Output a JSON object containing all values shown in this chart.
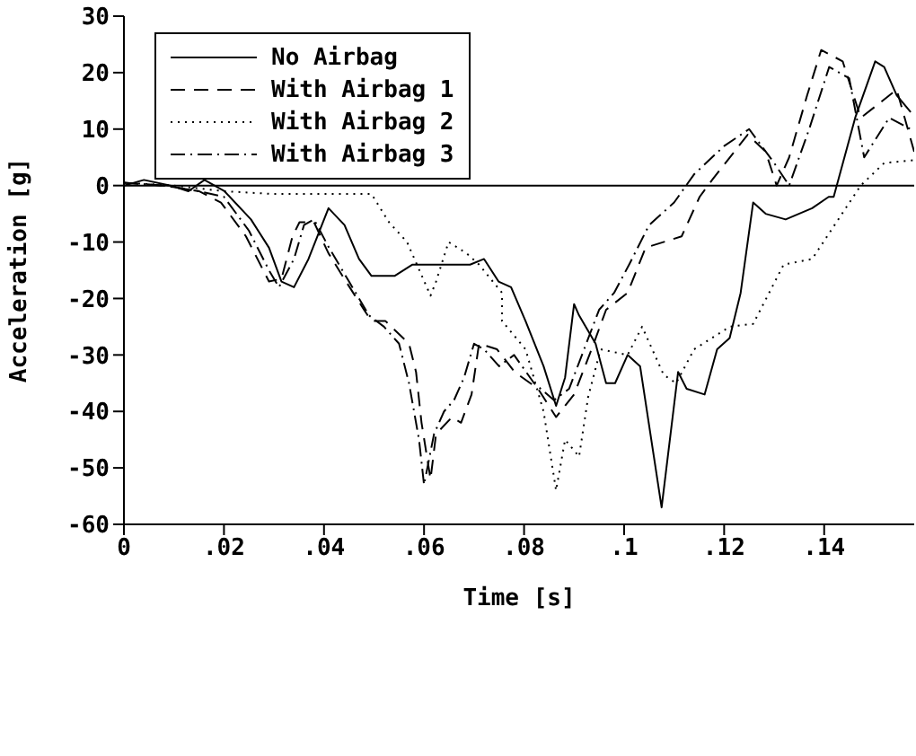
{
  "chart_data": {
    "type": "line",
    "xlabel": "Time [s]",
    "ylabel": "Acceleration [g]",
    "xlim": [
      0,
      0.158
    ],
    "xticks": [
      0,
      {
        "value": 0.02,
        "label": ".02"
      },
      {
        "value": 0.04,
        "label": ".04"
      },
      {
        "value": 0.06,
        "label": ".06"
      },
      {
        "value": 0.08,
        "label": ".08"
      },
      {
        "value": 0.1,
        "label": ".1"
      },
      {
        "value": 0.12,
        "label": ".12"
      },
      {
        "value": 0.14,
        "label": ".14"
      }
    ],
    "ylim": [
      -60,
      30
    ],
    "yticks": [
      -60,
      -50,
      -40,
      -30,
      -20,
      -10,
      0,
      10,
      20,
      30
    ],
    "grid": false,
    "legend": "top left",
    "marker": "none",
    "ref_lines": [
      {
        "axis": "y",
        "value": 0,
        "color": "#000000",
        "line_style": "solid"
      }
    ],
    "series": [
      {
        "name": "No Airbag",
        "color": "#000000",
        "line_style": "solid",
        "x": [
          0,
          0.004,
          0.0093,
          0.0129,
          0.0161,
          0.0201,
          0.0254,
          0.029,
          0.0315,
          0.034,
          0.0369,
          0.0409,
          0.0441,
          0.047,
          0.0495,
          0.0541,
          0.0577,
          0.0631,
          0.0692,
          0.072,
          0.0749,
          0.0774,
          0.0803,
          0.0839,
          0.0864,
          0.0882,
          0.09,
          0.091,
          0.0943,
          0.0964,
          0.0982,
          0.1007,
          0.1032,
          0.1075,
          0.1108,
          0.1125,
          0.1161,
          0.1186,
          0.1211,
          0.1233,
          0.1258,
          0.1283,
          0.1323,
          0.1376,
          0.1409,
          0.1419,
          0.1462,
          0.1502,
          0.152,
          0.1545,
          0.1573
        ],
        "values": [
          0,
          1,
          0,
          -1,
          1,
          -1,
          -6,
          -11,
          -17,
          -18,
          -13,
          -4,
          -7,
          -13,
          -16,
          -16,
          -14,
          -14,
          -14,
          -13,
          -17,
          -18,
          -24,
          -32,
          -39,
          -34,
          -21,
          -23,
          -28,
          -35,
          -35,
          -30,
          -32,
          -57,
          -33,
          -36,
          -37,
          -29,
          -27,
          -19,
          -3,
          -5,
          -6,
          -4,
          -2,
          -2,
          12,
          22,
          21,
          16,
          13
        ]
      },
      {
        "name": "With Airbag 1",
        "color": "#000000",
        "line_style": "dashed",
        "x": [
          0,
          0.008,
          0.015,
          0.0194,
          0.0244,
          0.029,
          0.0315,
          0.0337,
          0.0351,
          0.038,
          0.0409,
          0.0444,
          0.048,
          0.0495,
          0.0523,
          0.057,
          0.0584,
          0.0595,
          0.0613,
          0.0624,
          0.0656,
          0.0674,
          0.0695,
          0.071,
          0.0746,
          0.0781,
          0.0828,
          0.0864,
          0.09,
          0.0935,
          0.0964,
          0.1007,
          0.1043,
          0.1115,
          0.1151,
          0.1176,
          0.1247,
          0.1283,
          0.1305,
          0.133,
          0.1366,
          0.1394,
          0.1437,
          0.1473,
          0.1502,
          0.1545,
          0.158
        ],
        "values": [
          0.5,
          0,
          -1,
          -3,
          -9,
          -17,
          -16.5,
          -9,
          -6.5,
          -6.5,
          -12,
          -17,
          -22,
          -24,
          -24,
          -28,
          -33,
          -42,
          -52,
          -44,
          -41,
          -42,
          -37,
          -28,
          -29,
          -33,
          -36,
          -41,
          -37,
          -29,
          -22,
          -19,
          -11,
          -9,
          -2,
          1,
          9,
          6,
          0,
          5,
          16,
          24,
          22,
          12,
          14,
          17,
          6
        ]
      },
      {
        "name": "With Airbag 2",
        "color": "#000000",
        "line_style": "dotted",
        "x": [
          0,
          0.01,
          0.02,
          0.03,
          0.04,
          0.0495,
          0.053,
          0.0566,
          0.0613,
          0.0624,
          0.0649,
          0.0685,
          0.071,
          0.0756,
          0.0756,
          0.0803,
          0.0839,
          0.0864,
          0.0882,
          0.091,
          0.0928,
          0.0953,
          0.1007,
          0.1036,
          0.1079,
          0.1104,
          0.114,
          0.1211,
          0.1258,
          0.1319,
          0.1376,
          0.1473,
          0.152,
          0.158
        ],
        "values": [
          0.5,
          0,
          -1,
          -1.5,
          -1.5,
          -1.5,
          -6.5,
          -10,
          -19.5,
          -17,
          -10,
          -12,
          -14,
          -19,
          -24,
          -29,
          -40,
          -54,
          -45,
          -48,
          -37.5,
          -29,
          -30,
          -25,
          -33.5,
          -35,
          -29,
          -25,
          -24.5,
          -14,
          -13,
          0,
          4,
          4.5
        ]
      },
      {
        "name": "With Airbag 3",
        "color": "#000000",
        "line_style": "dashdot",
        "x": [
          0,
          0.008,
          0.015,
          0.02,
          0.025,
          0.029,
          0.031,
          0.034,
          0.036,
          0.038,
          0.041,
          0.045,
          0.049,
          0.052,
          0.055,
          0.057,
          0.059,
          0.06,
          0.062,
          0.064,
          0.066,
          0.068,
          0.07,
          0.072,
          0.075,
          0.078,
          0.082,
          0.086,
          0.089,
          0.092,
          0.095,
          0.098,
          0.101,
          0.105,
          0.11,
          0.114,
          0.12,
          0.125,
          0.13,
          0.133,
          0.137,
          0.141,
          0.145,
          0.148,
          0.153,
          0.1573
        ],
        "values": [
          0.5,
          0,
          -1,
          -2,
          -8,
          -15,
          -18,
          -13,
          -7,
          -6,
          -11,
          -17,
          -23,
          -25,
          -28,
          -35,
          -45,
          -53,
          -44,
          -40,
          -38,
          -34,
          -28,
          -29,
          -32,
          -30,
          -35,
          -38,
          -36,
          -29,
          -22,
          -19,
          -14,
          -7,
          -3,
          2,
          7,
          10,
          4,
          0,
          10,
          21,
          19,
          5,
          12,
          10
        ]
      }
    ]
  }
}
